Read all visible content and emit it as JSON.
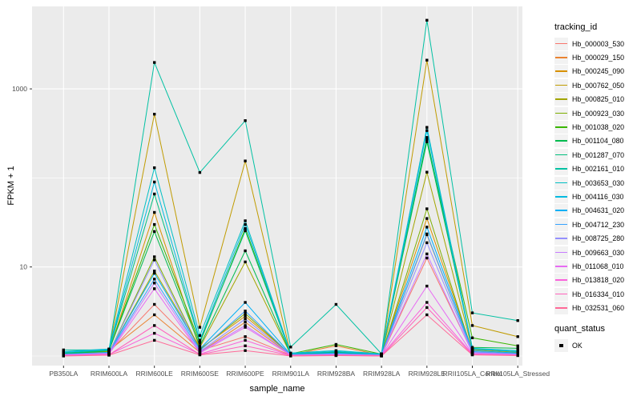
{
  "chart_data": {
    "type": "line",
    "title": "",
    "xlabel": "sample_name",
    "ylabel": "FPKM + 1",
    "y_scale": "log10",
    "grid": true,
    "panel_bg": "#EBEBEB",
    "grid_color": "#FFFFFF",
    "tick_color": "#333333",
    "tick_label_color": "#4D4D4D",
    "point_shape": "square",
    "point_color": "#000000",
    "y_ticks": [
      {
        "value": 10,
        "label": "10"
      },
      {
        "value": 1000,
        "label": "1000"
      }
    ],
    "y_minor_ticks": [
      1,
      100
    ],
    "categories": [
      "PB350LA",
      "RRIM600LA",
      "RRIM600LE",
      "RRIM600SE",
      "RRIM600PE",
      "RRIM901LA",
      "RRIM928BA",
      "RRIM928LA",
      "RRIM928LE",
      "RRII105LA_Control",
      "RRII105LA_Stressed"
    ],
    "series": [
      {
        "name": "Hb_000003_530",
        "color": "#F8766D",
        "values": [
          1.02,
          1.1,
          3.8,
          1.15,
          1.65,
          1.02,
          1.05,
          1.01,
          12.6,
          1.1,
          1.05
        ]
      },
      {
        "name": "Hb_000029_150",
        "color": "#EA8331",
        "values": [
          1.03,
          1.15,
          2.9,
          1.1,
          2.4,
          1.03,
          1.3,
          1.02,
          23,
          1.12,
          1.06
        ]
      },
      {
        "name": "Hb_000245_090",
        "color": "#D89000",
        "values": [
          1.05,
          1.12,
          41,
          1.2,
          2.8,
          1.04,
          1.1,
          1.03,
          35,
          1.15,
          1.08
        ]
      },
      {
        "name": "Hb_000762_050",
        "color": "#C09B00",
        "values": [
          1.06,
          1.18,
          520,
          2.1,
          155,
          1.05,
          1.12,
          1.04,
          2100,
          2.2,
          1.65
        ]
      },
      {
        "name": "Hb_000825_010",
        "color": "#A3A500",
        "values": [
          1.04,
          1.1,
          9.0,
          1.25,
          11.4,
          1.04,
          1.08,
          1.03,
          116,
          1.18,
          1.1
        ]
      },
      {
        "name": "Hb_000923_030",
        "color": "#7CAE00",
        "values": [
          1.03,
          1.08,
          13,
          1.18,
          3.0,
          1.03,
          1.06,
          1.02,
          45,
          1.1,
          1.06
        ]
      },
      {
        "name": "Hb_001038_020",
        "color": "#39B600",
        "values": [
          1.05,
          1.14,
          30,
          1.4,
          27,
          1.06,
          1.35,
          1.05,
          270,
          1.6,
          1.3
        ]
      },
      {
        "name": "Hb_001104_080",
        "color": "#00BB4E",
        "values": [
          1.06,
          1.15,
          25,
          1.3,
          15.2,
          1.05,
          1.1,
          1.04,
          255,
          1.25,
          1.22
        ]
      },
      {
        "name": "Hb_001287_070",
        "color": "#00BF7D",
        "values": [
          1.08,
          1.16,
          66,
          1.45,
          25.5,
          1.06,
          1.12,
          1.05,
          285,
          1.2,
          1.12
        ]
      },
      {
        "name": "Hb_002161_010",
        "color": "#00C1A3",
        "values": [
          1.17,
          1.17,
          1980,
          115,
          440,
          1.26,
          3.8,
          1.06,
          5900,
          3.05,
          2.5
        ]
      },
      {
        "name": "Hb_003653_030",
        "color": "#00BFC4",
        "values": [
          1.12,
          1.2,
          130,
          1.7,
          33,
          1.08,
          1.15,
          1.06,
          370,
          1.22,
          1.15
        ]
      },
      {
        "name": "Hb_004116_030",
        "color": "#00BAE0",
        "values": [
          1.1,
          1.18,
          90,
          1.5,
          30,
          1.07,
          1.12,
          1.05,
          340,
          1.2,
          1.12
        ]
      },
      {
        "name": "Hb_004631_020",
        "color": "#00B0F6",
        "values": [
          1.05,
          1.1,
          8.5,
          1.2,
          4.0,
          1.04,
          1.08,
          1.03,
          28,
          1.15,
          1.08
        ]
      },
      {
        "name": "Hb_004712_230",
        "color": "#35A2FF",
        "values": [
          1.04,
          1.08,
          7.3,
          1.15,
          3.2,
          1.03,
          1.06,
          1.02,
          23.5,
          1.12,
          1.06
        ]
      },
      {
        "name": "Hb_008725_280",
        "color": "#9590FF",
        "values": [
          1.04,
          1.08,
          12.0,
          1.12,
          2.6,
          1.03,
          1.05,
          1.02,
          18.7,
          1.1,
          1.05
        ]
      },
      {
        "name": "Hb_009663_030",
        "color": "#C77CFF",
        "values": [
          1.03,
          1.06,
          6.6,
          1.1,
          2.2,
          1.02,
          1.04,
          1.02,
          14,
          1.08,
          1.04
        ]
      },
      {
        "name": "Hb_011068_010",
        "color": "#E76BF3",
        "values": [
          1.02,
          1.05,
          5.7,
          1.08,
          2.1,
          1.02,
          1.03,
          1.01,
          6.1,
          1.06,
          1.03
        ]
      },
      {
        "name": "Hb_013818_020",
        "color": "#FA62DB",
        "values": [
          1.02,
          1.04,
          1.8,
          1.05,
          1.5,
          1.01,
          1.02,
          1.01,
          4.0,
          1.05,
          1.02
        ]
      },
      {
        "name": "Hb_016334_010",
        "color": "#FF62BC",
        "values": [
          1.01,
          1.03,
          2.2,
          1.04,
          1.3,
          1.01,
          1.02,
          1.0,
          3.5,
          1.04,
          1.02
        ]
      },
      {
        "name": "Hb_032531_060",
        "color": "#FF6A98",
        "values": [
          1.0,
          1.02,
          1.5,
          1.03,
          1.15,
          1.0,
          1.01,
          1.0,
          2.9,
          1.03,
          1.01
        ]
      }
    ],
    "legend": {
      "tracking_title": "tracking_id",
      "quant_title": "quant_status",
      "quant_label": "OK"
    }
  }
}
